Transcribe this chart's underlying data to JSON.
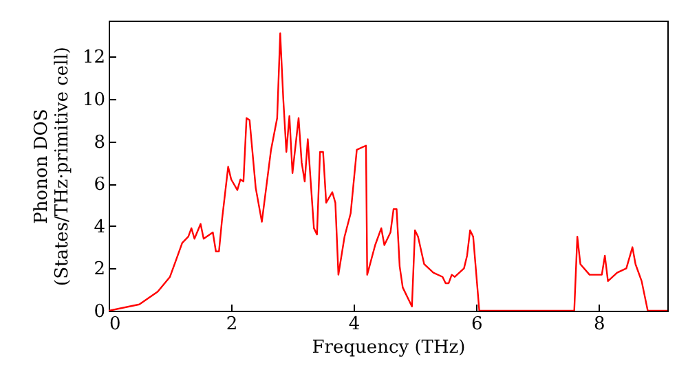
{
  "chart_data": {
    "type": "line",
    "xlabel": "Frequency (THz)",
    "ylabel": "Phonon DOS\n(States/THz·primitive cell)",
    "xlim": [
      0,
      9.12
    ],
    "ylim": [
      0,
      13.7
    ],
    "xticks": [
      0,
      2,
      4,
      6,
      8
    ],
    "yticks": [
      0,
      2,
      4,
      6,
      8,
      10,
      12
    ],
    "grid": false,
    "series": [
      {
        "color": "#ff0000",
        "x": [
          0,
          0.5,
          0.8,
          1.0,
          1.1,
          1.2,
          1.3,
          1.35,
          1.4,
          1.5,
          1.55,
          1.7,
          1.75,
          1.8,
          1.85,
          1.95,
          2.0,
          2.1,
          2.15,
          2.2,
          2.25,
          2.3,
          2.4,
          2.5,
          2.65,
          2.75,
          2.8,
          2.85,
          2.9,
          2.95,
          3.0,
          3.1,
          3.15,
          3.2,
          3.25,
          3.35,
          3.4,
          3.45,
          3.5,
          3.55,
          3.65,
          3.7,
          3.75,
          3.85,
          3.95,
          4.05,
          4.2,
          4.22,
          4.35,
          4.45,
          4.5,
          4.6,
          4.65,
          4.7,
          4.75,
          4.8,
          4.9,
          4.95,
          5.0,
          5.05,
          5.15,
          5.3,
          5.45,
          5.5,
          5.55,
          5.6,
          5.65,
          5.8,
          5.85,
          5.9,
          5.95,
          6.05,
          7.6,
          7.65,
          7.7,
          7.85,
          8.05,
          8.1,
          8.15,
          8.3,
          8.45,
          8.55,
          8.6,
          8.7,
          8.8,
          9.12
        ],
        "values": [
          0,
          0.3,
          0.9,
          1.6,
          2.4,
          3.2,
          3.5,
          3.9,
          3.4,
          4.1,
          3.4,
          3.7,
          2.8,
          2.8,
          4.3,
          6.8,
          6.2,
          5.7,
          6.2,
          6.1,
          9.1,
          9.0,
          5.8,
          4.2,
          7.6,
          9.1,
          13.1,
          10,
          7.5,
          9.2,
          6.5,
          9.1,
          7.0,
          6.1,
          8.1,
          3.9,
          3.6,
          7.5,
          7.5,
          5.1,
          5.6,
          5.1,
          1.7,
          3.5,
          4.6,
          7.6,
          7.8,
          1.7,
          3.1,
          3.9,
          3.1,
          3.7,
          4.8,
          4.8,
          2.1,
          1.1,
          0.5,
          0.2,
          3.8,
          3.5,
          2.2,
          1.8,
          1.6,
          1.3,
          1.3,
          1.7,
          1.6,
          2.0,
          2.6,
          3.8,
          3.5,
          0,
          0,
          3.5,
          2.2,
          1.7,
          1.7,
          2.6,
          1.4,
          1.8,
          2.0,
          3.0,
          2.2,
          1.4,
          0,
          0
        ]
      }
    ]
  }
}
